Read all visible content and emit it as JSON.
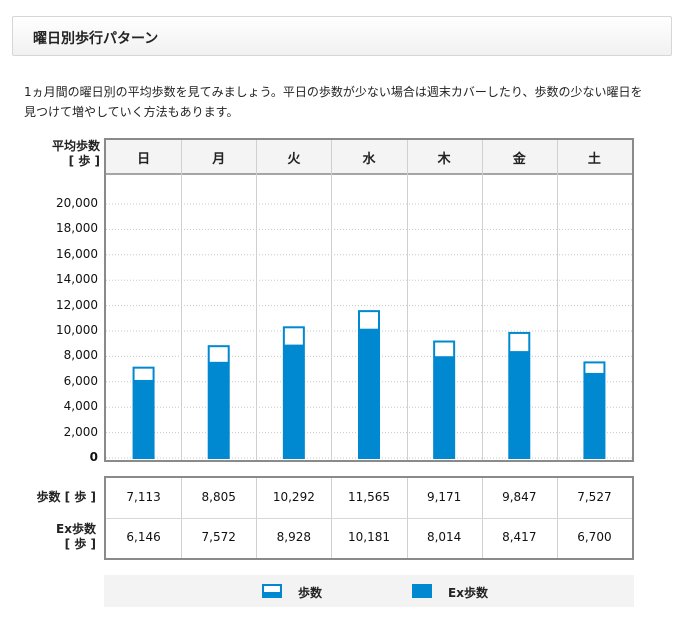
{
  "header": {
    "title": "曜日別歩行パターン"
  },
  "description": "1ヵ月間の曜日別の平均歩数を見てみましょう。平日の歩数が少ない場合は週末カバーしたり、歩数の少ない曜日を見つけて増やしていく方法もあります。",
  "colors": {
    "accent": "#0089d0",
    "grid": "#d0d0d0",
    "border": "#8a8a8a"
  },
  "chart_data": {
    "type": "bar",
    "ylabel": "平均歩数\n[ 歩 ]",
    "yticks": [
      "20,000",
      "18,000",
      "16,000",
      "14,000",
      "12,000",
      "10,000",
      "8,000",
      "6,000",
      "4,000",
      "2,000",
      "0"
    ],
    "ylim": [
      0,
      20000
    ],
    "categories": [
      "日",
      "月",
      "火",
      "水",
      "木",
      "金",
      "土"
    ],
    "series": [
      {
        "name": "歩数",
        "values": [
          7113,
          8805,
          10292,
          11565,
          9171,
          9847,
          7527
        ]
      },
      {
        "name": "Ex歩数",
        "values": [
          6146,
          7572,
          8928,
          10181,
          8014,
          8417,
          6700
        ]
      }
    ]
  },
  "table": {
    "rows": [
      {
        "label": "歩数 [ 歩 ]",
        "values": [
          "7,113",
          "8,805",
          "10,292",
          "11,565",
          "9,171",
          "9,847",
          "7,527"
        ]
      },
      {
        "label": "Ex歩数\n[ 歩 ]",
        "values": [
          "6,146",
          "7,572",
          "8,928",
          "10,181",
          "8,014",
          "8,417",
          "6,700"
        ]
      }
    ]
  },
  "legend": {
    "steps_label": "歩数",
    "ex_label": "Ex歩数"
  }
}
